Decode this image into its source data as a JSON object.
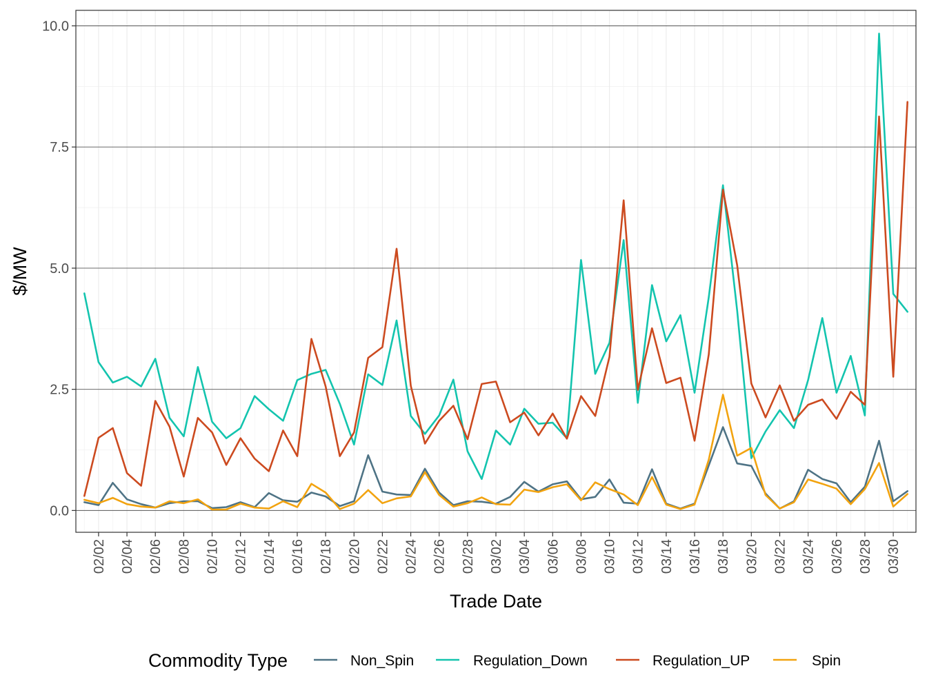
{
  "chart_data": {
    "type": "line",
    "xlabel": "Trade Date",
    "ylabel": "$/MW",
    "ylim": [
      -0.45,
      10.32
    ],
    "y_ticks": [
      0.0,
      2.5,
      5.0,
      7.5,
      10.0
    ],
    "y_tick_labels": [
      "0.0",
      "2.5",
      "5.0",
      "7.5",
      "10.0"
    ],
    "x": [
      "02/01",
      "02/02",
      "02/03",
      "02/04",
      "02/05",
      "02/06",
      "02/07",
      "02/08",
      "02/09",
      "02/10",
      "02/11",
      "02/12",
      "02/13",
      "02/14",
      "02/15",
      "02/16",
      "02/17",
      "02/18",
      "02/19",
      "02/20",
      "02/21",
      "02/22",
      "02/23",
      "02/24",
      "02/25",
      "02/26",
      "02/27",
      "02/28",
      "03/01",
      "03/02",
      "03/03",
      "03/04",
      "03/05",
      "03/06",
      "03/07",
      "03/08",
      "03/09",
      "03/10",
      "03/11",
      "03/12",
      "03/13",
      "03/14",
      "03/15",
      "03/16",
      "03/17",
      "03/18",
      "03/19",
      "03/20",
      "03/21",
      "03/22",
      "03/23",
      "03/24",
      "03/25",
      "03/26",
      "03/27",
      "03/28",
      "03/29",
      "03/30",
      "03/31"
    ],
    "x_tick_labels": [
      "02/02",
      "02/04",
      "02/06",
      "02/08",
      "02/10",
      "02/12",
      "02/14",
      "02/16",
      "02/18",
      "02/20",
      "02/22",
      "02/24",
      "02/26",
      "02/28",
      "03/02",
      "03/04",
      "03/06",
      "03/08",
      "03/10",
      "03/12",
      "03/14",
      "03/16",
      "03/18",
      "03/20",
      "03/22",
      "03/24",
      "03/26",
      "03/28",
      "03/30"
    ],
    "grid": true,
    "legend": {
      "title": "Commodity Type",
      "position": "bottom"
    },
    "series": [
      {
        "name": "Non_Spin",
        "color": "#4e7385",
        "values": [
          0.17,
          0.11,
          0.57,
          0.23,
          0.13,
          0.06,
          0.15,
          0.19,
          0.19,
          0.05,
          0.07,
          0.17,
          0.07,
          0.36,
          0.21,
          0.18,
          0.37,
          0.29,
          0.09,
          0.19,
          1.14,
          0.39,
          0.33,
          0.32,
          0.86,
          0.37,
          0.11,
          0.19,
          0.18,
          0.14,
          0.28,
          0.59,
          0.39,
          0.54,
          0.6,
          0.23,
          0.28,
          0.64,
          0.16,
          0.14,
          0.85,
          0.14,
          0.04,
          0.14,
          0.93,
          1.72,
          0.97,
          0.92,
          0.35,
          0.04,
          0.19,
          0.84,
          0.65,
          0.56,
          0.17,
          0.49,
          1.44,
          0.19,
          0.4
        ]
      },
      {
        "name": "Regulation_Down",
        "color": "#13c4ae",
        "values": [
          4.48,
          3.06,
          2.64,
          2.76,
          2.56,
          3.13,
          1.91,
          1.53,
          2.96,
          1.83,
          1.49,
          1.7,
          2.36,
          2.09,
          1.85,
          2.69,
          2.82,
          2.9,
          2.2,
          1.36,
          2.81,
          2.59,
          3.92,
          1.95,
          1.58,
          1.96,
          2.7,
          1.22,
          0.65,
          1.65,
          1.36,
          2.1,
          1.79,
          1.81,
          1.49,
          5.17,
          2.82,
          3.46,
          5.58,
          2.22,
          4.65,
          3.49,
          4.03,
          2.43,
          4.4,
          6.71,
          4.12,
          1.08,
          1.63,
          2.07,
          1.7,
          2.69,
          3.97,
          2.43,
          3.19,
          1.96,
          9.84,
          4.47,
          4.1
        ]
      },
      {
        "name": "Regulation_UP",
        "color": "#cc4a1f",
        "values": [
          0.3,
          1.5,
          1.7,
          0.77,
          0.51,
          2.26,
          1.73,
          0.7,
          1.91,
          1.61,
          0.94,
          1.49,
          1.07,
          0.81,
          1.65,
          1.12,
          3.54,
          2.56,
          1.12,
          1.61,
          3.15,
          3.37,
          5.4,
          2.57,
          1.38,
          1.85,
          2.16,
          1.47,
          2.61,
          2.66,
          1.82,
          2.02,
          1.55,
          2.0,
          1.48,
          2.36,
          1.95,
          3.17,
          6.4,
          2.49,
          3.76,
          2.63,
          2.74,
          1.44,
          3.22,
          6.62,
          5.06,
          2.62,
          1.92,
          2.58,
          1.85,
          2.18,
          2.29,
          1.89,
          2.45,
          2.18,
          8.13,
          2.76,
          8.43
        ]
      },
      {
        "name": "Spin",
        "color": "#f2a30f",
        "values": [
          0.22,
          0.15,
          0.26,
          0.13,
          0.08,
          0.06,
          0.19,
          0.15,
          0.23,
          0.02,
          0.02,
          0.14,
          0.06,
          0.04,
          0.19,
          0.07,
          0.55,
          0.37,
          0.03,
          0.14,
          0.42,
          0.15,
          0.25,
          0.29,
          0.79,
          0.32,
          0.08,
          0.15,
          0.27,
          0.13,
          0.12,
          0.43,
          0.38,
          0.48,
          0.54,
          0.21,
          0.58,
          0.44,
          0.33,
          0.11,
          0.69,
          0.12,
          0.03,
          0.12,
          1.05,
          2.39,
          1.13,
          1.29,
          0.32,
          0.04,
          0.17,
          0.64,
          0.55,
          0.45,
          0.13,
          0.44,
          0.98,
          0.08,
          0.34
        ]
      }
    ]
  }
}
